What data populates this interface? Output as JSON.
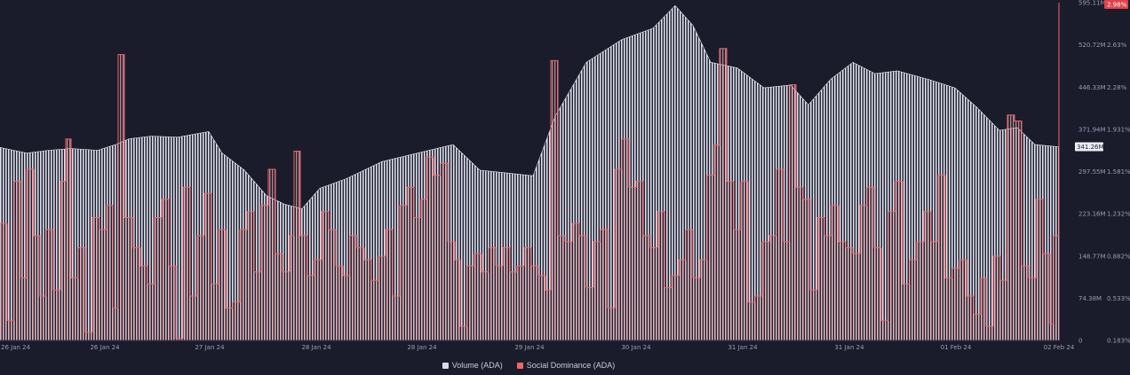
{
  "chart_data": {
    "type": "bar",
    "x_ticks": [
      "26 Jan 24",
      "26 Jan 24",
      "27 Jan 24",
      "28 Jan 24",
      "28 Jan 24",
      "29 Jan 24",
      "30 Jan 24",
      "31 Jan 24",
      "31 Jan 24",
      "01 Feb 24",
      "02 Feb 24"
    ],
    "y_left_ticks": [
      "595.11M",
      "520.72M",
      "446.33M",
      "371.94M",
      "297.55M",
      "223.16M",
      "148.77M",
      "74.38M",
      "0"
    ],
    "y_right_ticks": [
      "2.98%",
      "2.63%",
      "2.28%",
      "1.931%",
      "1.581%",
      "1.232%",
      "0.882%",
      "0.533%",
      "0.183%"
    ],
    "ylim_left": [
      0,
      595.11
    ],
    "ylim_right": [
      0.183,
      2.98
    ],
    "current_volume_label": "341.26M",
    "current_dominance_label": "2.98%",
    "series": [
      {
        "name": "Volume (ADA)",
        "color": "#d9dbe8",
        "unit": "M",
        "points": [
          [
            0,
            340
          ],
          [
            30,
            330
          ],
          [
            55,
            335
          ],
          [
            80,
            338
          ],
          [
            110,
            335
          ],
          [
            130,
            345
          ],
          [
            145,
            355
          ],
          [
            170,
            360
          ],
          [
            200,
            358
          ],
          [
            235,
            368
          ],
          [
            250,
            330
          ],
          [
            275,
            300
          ],
          [
            300,
            255
          ],
          [
            320,
            240
          ],
          [
            340,
            232
          ],
          [
            360,
            268
          ],
          [
            390,
            285
          ],
          [
            430,
            315
          ],
          [
            470,
            330
          ],
          [
            510,
            345
          ],
          [
            540,
            300
          ],
          [
            570,
            295
          ],
          [
            600,
            290
          ],
          [
            625,
            395
          ],
          [
            660,
            490
          ],
          [
            700,
            530
          ],
          [
            735,
            550
          ],
          [
            760,
            590
          ],
          [
            780,
            555
          ],
          [
            800,
            490
          ],
          [
            830,
            480
          ],
          [
            860,
            445
          ],
          [
            890,
            450
          ],
          [
            910,
            415
          ],
          [
            935,
            460
          ],
          [
            960,
            490
          ],
          [
            985,
            470
          ],
          [
            1010,
            475
          ],
          [
            1045,
            460
          ],
          [
            1075,
            445
          ],
          [
            1100,
            410
          ],
          [
            1125,
            370
          ],
          [
            1145,
            375
          ],
          [
            1165,
            345
          ],
          [
            1192,
            341
          ]
        ]
      },
      {
        "name": "Social Dominance (ADA)",
        "color": "#f0656a",
        "unit": "%",
        "points": [
          [
            0,
            1.15
          ],
          [
            8,
            0.35
          ],
          [
            16,
            1.5
          ],
          [
            24,
            0.7
          ],
          [
            30,
            1.6
          ],
          [
            38,
            1.05
          ],
          [
            45,
            0.55
          ],
          [
            52,
            1.1
          ],
          [
            60,
            0.6
          ],
          [
            68,
            1.5
          ],
          [
            74,
            1.85
          ],
          [
            80,
            0.7
          ],
          [
            88,
            0.95
          ],
          [
            96,
            0.25
          ],
          [
            104,
            1.2
          ],
          [
            112,
            1.1
          ],
          [
            120,
            1.3
          ],
          [
            127,
            0.45
          ],
          [
            133,
            2.55
          ],
          [
            140,
            1.2
          ],
          [
            150,
            0.95
          ],
          [
            158,
            0.8
          ],
          [
            166,
            0.65
          ],
          [
            174,
            1.2
          ],
          [
            182,
            1.35
          ],
          [
            190,
            0.8
          ],
          [
            198,
            0.2
          ],
          [
            206,
            1.45
          ],
          [
            214,
            0.55
          ],
          [
            222,
            1.05
          ],
          [
            230,
            1.4
          ],
          [
            238,
            0.65
          ],
          [
            246,
            1.1
          ],
          [
            254,
            0.45
          ],
          [
            262,
            0.5
          ],
          [
            270,
            1.1
          ],
          [
            278,
            1.25
          ],
          [
            286,
            0.75
          ],
          [
            294,
            1.3
          ],
          [
            302,
            1.6
          ],
          [
            310,
            0.9
          ],
          [
            318,
            0.75
          ],
          [
            326,
            1.05
          ],
          [
            331,
            1.75
          ],
          [
            338,
            1.05
          ],
          [
            346,
            0.72
          ],
          [
            354,
            0.85
          ],
          [
            362,
            1.25
          ],
          [
            370,
            1.1
          ],
          [
            378,
            0.8
          ],
          [
            386,
            0.72
          ],
          [
            394,
            1.05
          ],
          [
            402,
            0.95
          ],
          [
            410,
            0.85
          ],
          [
            418,
            0.68
          ],
          [
            426,
            0.88
          ],
          [
            434,
            1.1
          ],
          [
            442,
            0.55
          ],
          [
            450,
            1.3
          ],
          [
            458,
            1.45
          ],
          [
            466,
            1.2
          ],
          [
            474,
            1.35
          ],
          [
            480,
            1.7
          ],
          [
            488,
            1.55
          ],
          [
            496,
            1.65
          ],
          [
            504,
            1.0
          ],
          [
            512,
            0.85
          ],
          [
            518,
            0.3
          ],
          [
            526,
            0.8
          ],
          [
            534,
            0.9
          ],
          [
            542,
            0.75
          ],
          [
            550,
            0.95
          ],
          [
            558,
            0.8
          ],
          [
            566,
            0.95
          ],
          [
            574,
            0.75
          ],
          [
            582,
            0.8
          ],
          [
            590,
            0.95
          ],
          [
            598,
            0.8
          ],
          [
            606,
            0.72
          ],
          [
            614,
            0.6
          ],
          [
            620,
            2.5
          ],
          [
            628,
            1.05
          ],
          [
            636,
            1.0
          ],
          [
            644,
            1.15
          ],
          [
            652,
            1.05
          ],
          [
            660,
            0.62
          ],
          [
            668,
            1.0
          ],
          [
            676,
            1.1
          ],
          [
            684,
            0.45
          ],
          [
            692,
            1.6
          ],
          [
            700,
            1.85
          ],
          [
            708,
            1.45
          ],
          [
            716,
            1.5
          ],
          [
            724,
            1.05
          ],
          [
            732,
            0.95
          ],
          [
            740,
            1.25
          ],
          [
            748,
            0.62
          ],
          [
            756,
            0.72
          ],
          [
            764,
            0.85
          ],
          [
            772,
            1.1
          ],
          [
            780,
            0.7
          ],
          [
            788,
            0.85
          ],
          [
            796,
            1.55
          ],
          [
            804,
            1.8
          ],
          [
            810,
            2.6
          ],
          [
            818,
            1.5
          ],
          [
            826,
            1.1
          ],
          [
            834,
            1.5
          ],
          [
            842,
            0.5
          ],
          [
            850,
            0.55
          ],
          [
            858,
            1.0
          ],
          [
            866,
            1.05
          ],
          [
            874,
            1.6
          ],
          [
            882,
            1.0
          ],
          [
            889,
            2.3
          ],
          [
            896,
            1.45
          ],
          [
            904,
            1.35
          ],
          [
            912,
            0.6
          ],
          [
            920,
            1.2
          ],
          [
            928,
            1.05
          ],
          [
            936,
            1.3
          ],
          [
            944,
            1.0
          ],
          [
            952,
            0.95
          ],
          [
            960,
            0.9
          ],
          [
            968,
            1.3
          ],
          [
            976,
            1.45
          ],
          [
            984,
            0.95
          ],
          [
            992,
            0.35
          ],
          [
            1000,
            1.25
          ],
          [
            1008,
            1.5
          ],
          [
            1016,
            0.65
          ],
          [
            1024,
            0.85
          ],
          [
            1032,
            1.0
          ],
          [
            1040,
            1.25
          ],
          [
            1048,
            1.0
          ],
          [
            1056,
            1.55
          ],
          [
            1064,
            0.7
          ],
          [
            1072,
            0.78
          ],
          [
            1080,
            0.85
          ],
          [
            1088,
            0.55
          ],
          [
            1096,
            0.4
          ],
          [
            1104,
            0.7
          ],
          [
            1110,
            0.3
          ],
          [
            1118,
            0.88
          ],
          [
            1126,
            0.68
          ],
          [
            1134,
            2.05
          ],
          [
            1142,
            2.0
          ],
          [
            1150,
            0.8
          ],
          [
            1158,
            0.7
          ],
          [
            1166,
            1.35
          ],
          [
            1174,
            0.9
          ],
          [
            1182,
            0.32
          ],
          [
            1186,
            1.05
          ],
          [
            1190,
            1.05
          ],
          [
            1192,
            2.98
          ]
        ]
      }
    ],
    "legend_position": "bottom",
    "grid": "none"
  }
}
